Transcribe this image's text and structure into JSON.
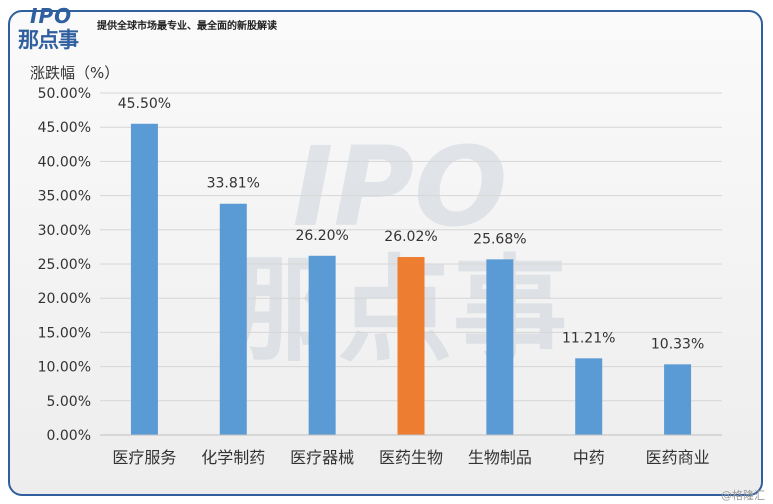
{
  "header": {
    "logo_en": "IPO",
    "logo_cn": "那点事",
    "slogan": "提供全球市场最专业、最全面的新股解读"
  },
  "watermark": {
    "center_en": "IPO",
    "center_cn": "那点事",
    "corner": "@格隆汇"
  },
  "colors": {
    "bar": "#5b9bd5",
    "highlight": "#ed7d31",
    "frame": "#2f5f9e"
  },
  "chart_data": {
    "type": "bar",
    "ylabel": "涨跌幅（%）",
    "categories": [
      "医疗服务",
      "化学制药",
      "医疗器械",
      "医药生物",
      "生物制品",
      "中药",
      "医药商业"
    ],
    "values": [
      45.5,
      33.81,
      26.2,
      26.02,
      25.68,
      11.21,
      10.33
    ],
    "data_labels": [
      "45.50%",
      "33.81%",
      "26.20%",
      "26.02%",
      "25.68%",
      "11.21%",
      "10.33%"
    ],
    "highlight_index": 3,
    "ylim": [
      0,
      50
    ],
    "yticks": [
      "0.00%",
      "5.00%",
      "10.00%",
      "15.00%",
      "20.00%",
      "25.00%",
      "30.00%",
      "35.00%",
      "40.00%",
      "45.00%",
      "50.00%"
    ],
    "ytick_values": [
      0,
      5,
      10,
      15,
      20,
      25,
      30,
      35,
      40,
      45,
      50
    ],
    "grid": true,
    "legend": "none"
  }
}
